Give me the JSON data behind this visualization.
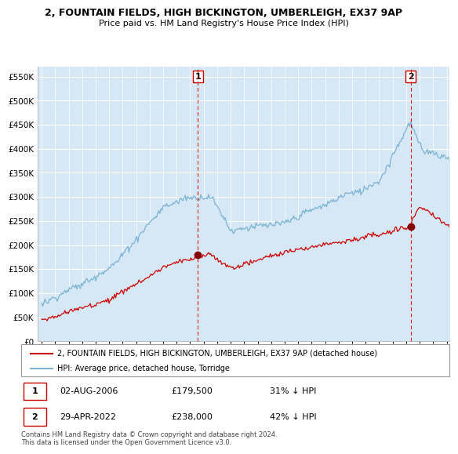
{
  "title": "2, FOUNTAIN FIELDS, HIGH BICKINGTON, UMBERLEIGH, EX37 9AP",
  "subtitle": "Price paid vs. HM Land Registry's House Price Index (HPI)",
  "legend_line1": "2, FOUNTAIN FIELDS, HIGH BICKINGTON, UMBERLEIGH, EX37 9AP (detached house)",
  "legend_line2": "HPI: Average price, detached house, Torridge",
  "footer": "Contains HM Land Registry data © Crown copyright and database right 2024.\nThis data is licensed under the Open Government Licence v3.0.",
  "sale1_date": "02-AUG-2006",
  "sale1_price": "£179,500",
  "sale1_hpi": "31% ↓ HPI",
  "sale2_date": "29-APR-2022",
  "sale2_price": "£238,000",
  "sale2_hpi": "42% ↓ HPI",
  "hpi_color": "#7ab3d4",
  "hpi_fill_color": "#d6e8f5",
  "sale_color": "#cc0000",
  "vline_color": "#dd0000",
  "ylim": [
    0,
    570000
  ],
  "yticks": [
    0,
    50000,
    100000,
    150000,
    200000,
    250000,
    300000,
    350000,
    400000,
    450000,
    500000,
    550000
  ],
  "sale1_x": 2006.58,
  "sale1_y": 179500,
  "sale2_x": 2022.33,
  "sale2_y": 238000,
  "xmin": 1995.0,
  "xmax": 2025.2
}
